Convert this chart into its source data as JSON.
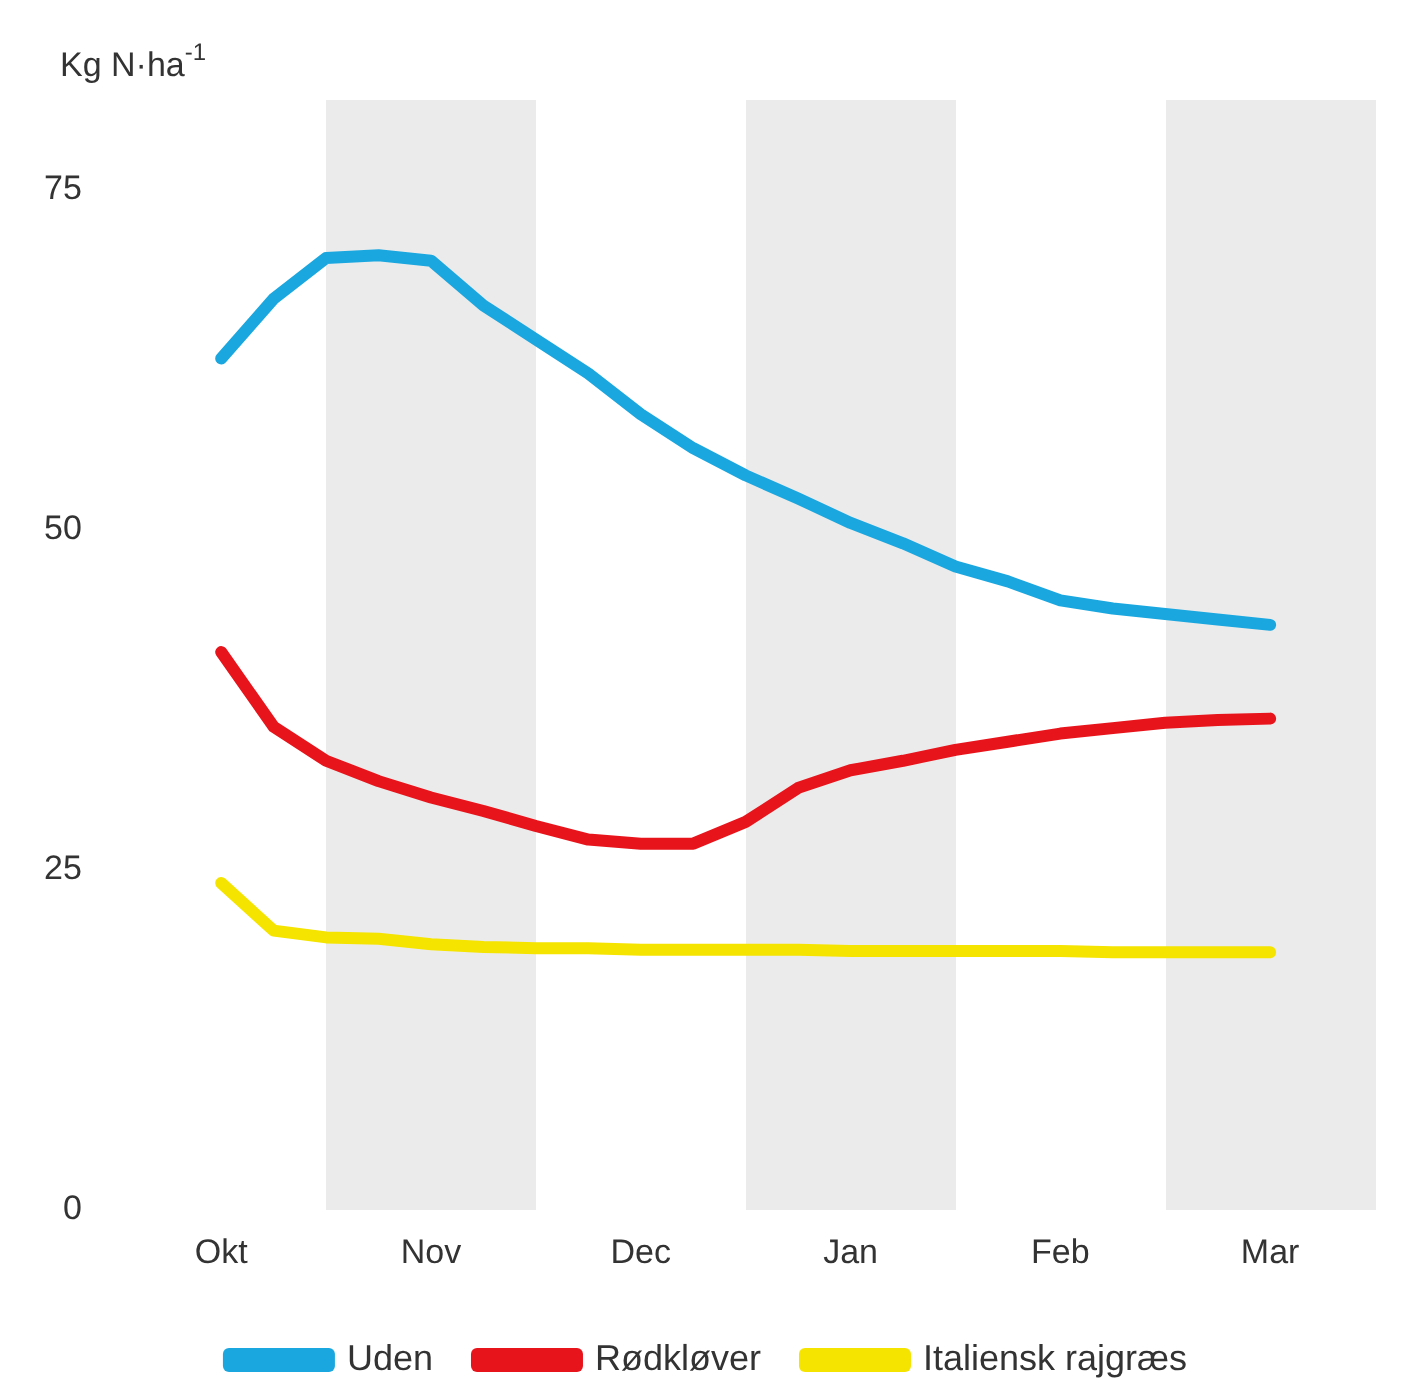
{
  "chart_data": {
    "type": "line",
    "ylabel": "Kg N·ha$^{-1}$",
    "categories": [
      "Okt",
      null,
      null,
      null,
      "Nov",
      null,
      null,
      null,
      "Dec",
      null,
      null,
      null,
      "Jan",
      null,
      null,
      null,
      "Feb",
      null,
      null,
      null,
      "Mar"
    ],
    "ylim": [
      0,
      75
    ],
    "yticks": [
      0,
      25,
      50,
      75
    ],
    "series": [
      {
        "name": "Uden",
        "color": "#1aa7e0",
        "values": [
          62.6,
          67,
          70,
          70.2,
          69.8,
          66.5,
          64,
          61.5,
          58.5,
          56,
          54,
          52.3,
          50.5,
          49,
          47.3,
          46.2,
          44.8,
          44.2,
          43.8,
          43.4,
          43
        ]
      },
      {
        "name": "Rødkløver",
        "color": "#e8141c",
        "values": [
          41,
          35.5,
          33,
          31.5,
          30.3,
          29.3,
          28.2,
          27.2,
          26.9,
          26.9,
          28.5,
          31,
          32.3,
          33,
          33.8,
          34.4,
          35,
          35.4,
          35.8,
          36,
          36.1
        ]
      },
      {
        "name": "Italiensk rajgræs",
        "color": "#f5e400",
        "values": [
          24,
          20.5,
          20,
          19.9,
          19.5,
          19.3,
          19.2,
          19.2,
          19.1,
          19.1,
          19.1,
          19.1,
          19,
          19,
          19,
          19,
          19,
          18.9,
          18.9,
          18.9,
          18.9
        ]
      }
    ],
    "legend": "bottom",
    "marker": "none",
    "line_style": "solid",
    "grid": false
  }
}
